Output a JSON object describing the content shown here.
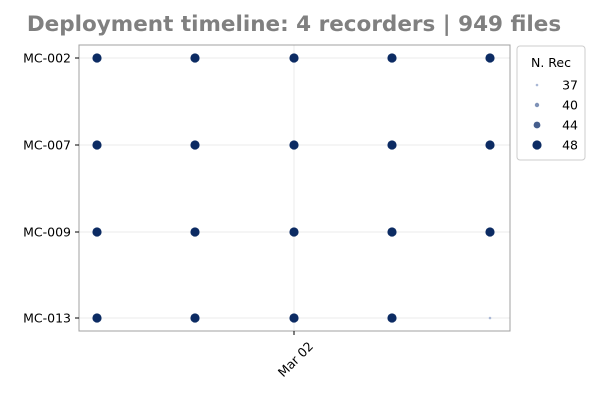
{
  "chart_data": {
    "type": "scatter",
    "title": "Deployment timeline: 4 recorders | 949 files",
    "xlabel": "",
    "ylabel": "",
    "x_ticks": [
      "Mar 02"
    ],
    "categories": [
      "MC-002",
      "MC-007",
      "MC-009",
      "MC-013"
    ],
    "x": [
      "Feb 28",
      "Mar 01",
      "Mar 02",
      "Mar 03",
      "Mar 04"
    ],
    "series": [
      {
        "category": "MC-002",
        "values": [
          48,
          48,
          48,
          48,
          48
        ]
      },
      {
        "category": "MC-007",
        "values": [
          48,
          48,
          48,
          48,
          48
        ]
      },
      {
        "category": "MC-009",
        "values": [
          48,
          48,
          48,
          48,
          48
        ]
      },
      {
        "category": "MC-013",
        "values": [
          48,
          48,
          48,
          48,
          37
        ]
      }
    ],
    "legend": {
      "title": "N. Rec",
      "placement": "outside-right",
      "entries": [
        37,
        40,
        44,
        48
      ]
    },
    "grid": true,
    "colors": {
      "title": "#808080",
      "marker_dark": "#0c2b63",
      "marker_light": "#aab8d6",
      "axis": "#a0a0a0",
      "grid": "#ebebeb"
    }
  }
}
